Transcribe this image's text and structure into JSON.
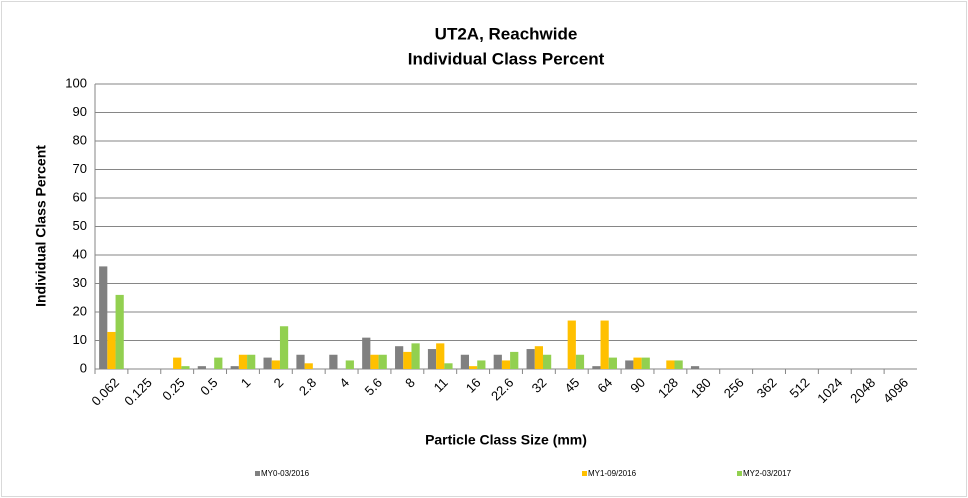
{
  "chart_data": {
    "type": "bar",
    "title": "UT2A, Reachwide",
    "subtitle": "Individual Class Percent",
    "x_label": "Particle Class Size (mm)",
    "y_label": "Individual Class Percent",
    "categories": [
      "0.062",
      "0.125",
      "0.25",
      "0.5",
      "1",
      "2",
      "2.8",
      "4",
      "5.6",
      "8",
      "11",
      "16",
      "22.6",
      "32",
      "45",
      "64",
      "90",
      "128",
      "180",
      "256",
      "362",
      "512",
      "1024",
      "2048",
      "4096"
    ],
    "series": [
      {
        "name": "MY0-03/2016",
        "color": "#808080",
        "values": [
          36,
          0,
          0,
          1,
          1,
          4,
          5,
          5,
          11,
          8,
          7,
          5,
          5,
          7,
          0,
          1,
          3,
          0,
          1,
          0,
          0,
          0,
          0,
          0,
          0
        ]
      },
      {
        "name": "MY1-09/2016",
        "color": "#ffc000",
        "values": [
          13,
          0,
          4,
          0,
          5,
          3,
          2,
          0,
          5,
          6,
          9,
          1,
          3,
          8,
          17,
          17,
          4,
          3,
          0,
          0,
          0,
          0,
          0,
          0,
          0
        ]
      },
      {
        "name": "MY2-03/2017",
        "color": "#92d050",
        "values": [
          26,
          0,
          1,
          4,
          5,
          15,
          0,
          3,
          5,
          9,
          2,
          3,
          6,
          5,
          5,
          4,
          4,
          3,
          0,
          0,
          0,
          0,
          0,
          0,
          0
        ]
      }
    ],
    "ylim": [
      0,
      100
    ],
    "yticks": [
      0,
      10,
      20,
      30,
      40,
      50,
      60,
      70,
      80,
      90,
      100
    ],
    "grid": true,
    "legend": "bottom"
  }
}
